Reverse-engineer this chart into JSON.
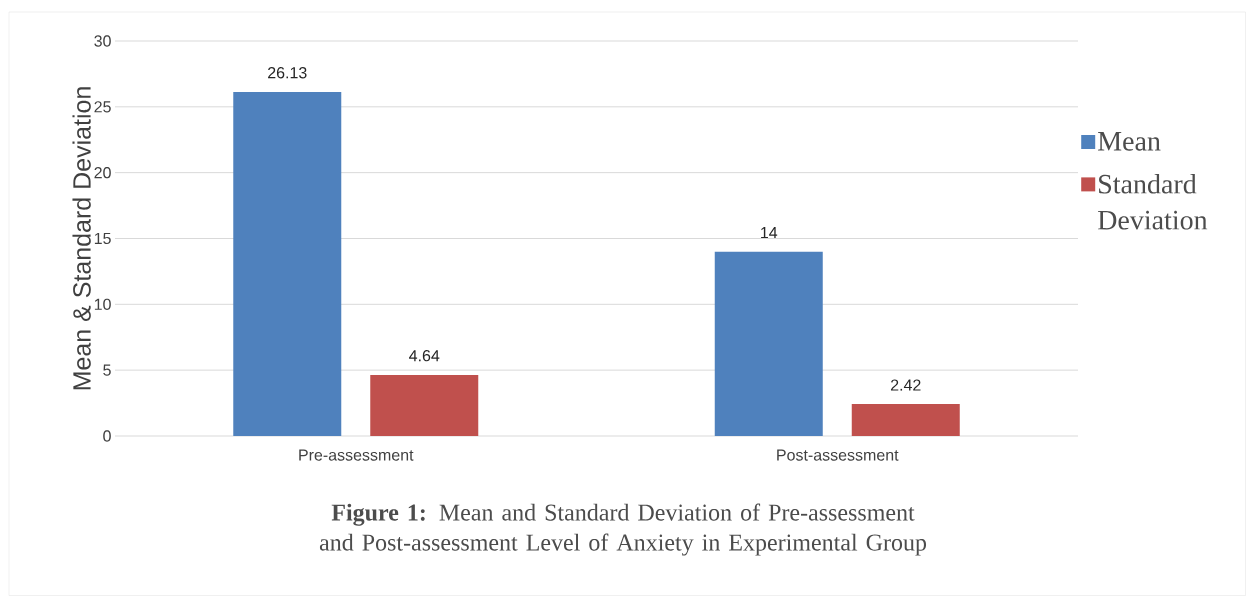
{
  "chart_data": {
    "type": "bar",
    "title": "**Figure 1:** Mean and Standard Deviation of Pre-assessment and Post-assessment Level of Anxiety in Experimental Group",
    "ylabel": "Mean & Standard Deviation",
    "categories": [
      "Pre-assessment",
      "Post-assessment"
    ],
    "series": [
      {
        "name": "Mean",
        "color": "#4f81bd",
        "values": [
          26.13,
          14
        ]
      },
      {
        "name": "Standard Deviation",
        "color": "#c0504d",
        "values": [
          4.64,
          2.42
        ]
      }
    ],
    "ylim": [
      0,
      30
    ],
    "yticks": [
      0,
      5,
      10,
      15,
      20,
      25,
      30
    ],
    "grid": "y",
    "legend": "right",
    "data_labels": true
  }
}
